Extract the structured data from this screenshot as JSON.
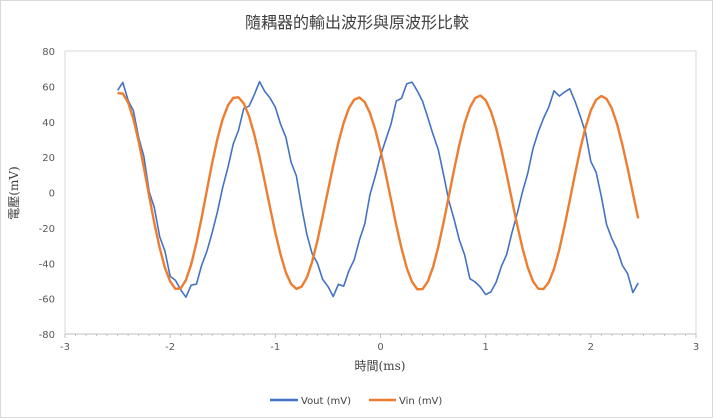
{
  "chart_data": {
    "type": "line",
    "title": "隨耦器的輸出波形與原波形比較",
    "xlabel": "時間(ms)",
    "ylabel": "電壓(mV)",
    "xlim": [
      -3,
      3
    ],
    "ylim": [
      -80,
      80
    ],
    "x_ticks": [
      "-3",
      "-2",
      "-1",
      "0",
      "1",
      "2",
      "3"
    ],
    "y_ticks": [
      "80",
      "60",
      "40",
      "20",
      "0",
      "-20",
      "-40",
      "-60",
      "-80"
    ],
    "grid": false,
    "legend_position": "bottom",
    "series": [
      {
        "name": "Vout (mV)",
        "color": "#4472C4",
        "x": [
          -2.5,
          -2.45,
          -2.4,
          -2.35,
          -2.3,
          -2.25,
          -2.2,
          -2.15,
          -2.1,
          -2.05,
          -2.0,
          -1.95,
          -1.9,
          -1.85,
          -1.8,
          -1.75,
          -1.7,
          -1.65,
          -1.6,
          -1.55,
          -1.5,
          -1.45,
          -1.4,
          -1.35,
          -1.3,
          -1.25,
          -1.2,
          -1.15,
          -1.1,
          -1.05,
          -1.0,
          -0.95,
          -0.9,
          -0.85,
          -0.8,
          -0.75,
          -0.7,
          -0.65,
          -0.6,
          -0.55,
          -0.5,
          -0.45,
          -0.4,
          -0.35,
          -0.3,
          -0.25,
          -0.2,
          -0.15,
          -0.1,
          -0.05,
          0.0,
          0.05,
          0.1,
          0.15,
          0.2,
          0.25,
          0.3,
          0.35,
          0.4,
          0.45,
          0.5,
          0.55,
          0.6,
          0.65,
          0.7,
          0.75,
          0.8,
          0.85,
          0.9,
          0.95,
          1.0,
          1.05,
          1.1,
          1.15,
          1.2,
          1.25,
          1.3,
          1.35,
          1.4,
          1.45,
          1.5,
          1.55,
          1.6,
          1.65,
          1.7,
          1.75,
          1.8,
          1.85,
          1.9,
          1.95,
          2.0,
          2.05,
          2.1,
          2.15,
          2.2,
          2.25,
          2.3,
          2.35,
          2.4,
          2.45
        ],
        "y": [
          57.8,
          62.2,
          52.1,
          46.3,
          31.2,
          20.4,
          0.6,
          -8.7,
          -24.9,
          -33.1,
          -47.4,
          -49.6,
          -55.0,
          -59.2,
          -52.4,
          -51.8,
          -41.0,
          -33.1,
          -22.6,
          -10.8,
          3.0,
          14.3,
          27.5,
          35.2,
          47.6,
          48.8,
          55.3,
          62.7,
          57.1,
          53.4,
          48.2,
          38.6,
          31.3,
          17.1,
          9.4,
          -8.2,
          -23.7,
          -34.6,
          -39.9,
          -49.1,
          -53.1,
          -58.8,
          -51.9,
          -53.0,
          -44.2,
          -38.0,
          -26.8,
          -17.8,
          -1.2,
          9.1,
          20.7,
          29.8,
          38.7,
          51.7,
          53.3,
          61.5,
          62.4,
          57.4,
          51.6,
          42.3,
          32.8,
          24.1,
          10.0,
          -4.7,
          -15.2,
          -26.9,
          -35.3,
          -48.7,
          -50.6,
          -53.5,
          -57.7,
          -56.2,
          -50.7,
          -41.7,
          -35.0,
          -22.7,
          -11.9,
          0.3,
          10.8,
          24.8,
          34.2,
          41.9,
          48.3,
          57.5,
          54.5,
          56.8,
          58.6,
          51.5,
          43.0,
          33.8,
          17.5,
          11.5,
          -2.3,
          -18.2,
          -26.1,
          -32.3,
          -41.2,
          -45.9,
          -56.6,
          -51.2
        ]
      },
      {
        "name": "Vin (mV)",
        "color": "#ED7D31",
        "x": [
          -2.5,
          -2.45,
          -2.4,
          -2.35,
          -2.3,
          -2.25,
          -2.2,
          -2.15,
          -2.1,
          -2.05,
          -2.0,
          -1.95,
          -1.9,
          -1.85,
          -1.8,
          -1.75,
          -1.7,
          -1.65,
          -1.6,
          -1.55,
          -1.5,
          -1.45,
          -1.4,
          -1.35,
          -1.3,
          -1.25,
          -1.2,
          -1.15,
          -1.1,
          -1.05,
          -1.0,
          -0.95,
          -0.9,
          -0.85,
          -0.8,
          -0.75,
          -0.7,
          -0.65,
          -0.6,
          -0.55,
          -0.5,
          -0.45,
          -0.4,
          -0.35,
          -0.3,
          -0.25,
          -0.2,
          -0.15,
          -0.1,
          -0.05,
          0.0,
          0.05,
          0.1,
          0.15,
          0.2,
          0.25,
          0.3,
          0.35,
          0.4,
          0.45,
          0.5,
          0.55,
          0.6,
          0.65,
          0.7,
          0.75,
          0.8,
          0.85,
          0.9,
          0.95,
          1.0,
          1.05,
          1.1,
          1.15,
          1.2,
          1.25,
          1.3,
          1.35,
          1.4,
          1.45,
          1.5,
          1.55,
          1.6,
          1.65,
          1.7,
          1.75,
          1.8,
          1.85,
          1.9,
          1.95,
          2.0,
          2.05,
          2.1,
          2.15,
          2.2,
          2.25,
          2.3,
          2.35,
          2.4,
          2.45
        ],
        "y": [
          56.2,
          55.9,
          50.9,
          41.7,
          29.0,
          14.0,
          -1.9,
          -17.5,
          -31.2,
          -42.5,
          -50.3,
          -54.5,
          -54.2,
          -49.5,
          -40.6,
          -28.4,
          -14.0,
          1.5,
          16.9,
          30.5,
          41.6,
          49.3,
          53.5,
          53.8,
          50.3,
          43.2,
          32.8,
          20.1,
          5.9,
          -8.6,
          -22.7,
          -35.1,
          -45.2,
          -51.7,
          -54.5,
          -53.2,
          -48.1,
          -39.2,
          -27.3,
          -13.4,
          0.9,
          15.1,
          28.3,
          39.4,
          47.7,
          52.5,
          53.7,
          51.1,
          44.9,
          35.6,
          23.8,
          10.3,
          -4.1,
          -18.5,
          -31.6,
          -42.7,
          -50.6,
          -54.7,
          -54.6,
          -50.3,
          -42.1,
          -30.6,
          -16.9,
          -2.0,
          13.0,
          27.0,
          39.1,
          48.0,
          53.4,
          54.8,
          52.2,
          45.9,
          36.3,
          24.0,
          10.1,
          -4.3,
          -18.5,
          -31.4,
          -42.3,
          -50.2,
          -54.4,
          -54.6,
          -50.8,
          -43.2,
          -32.3,
          -19.0,
          -4.4,
          10.5,
          24.7,
          36.9,
          46.4,
          52.4,
          54.6,
          52.9,
          47.5,
          38.6,
          27.0,
          13.7,
          -0.5,
          -14.6
        ]
      }
    ]
  }
}
